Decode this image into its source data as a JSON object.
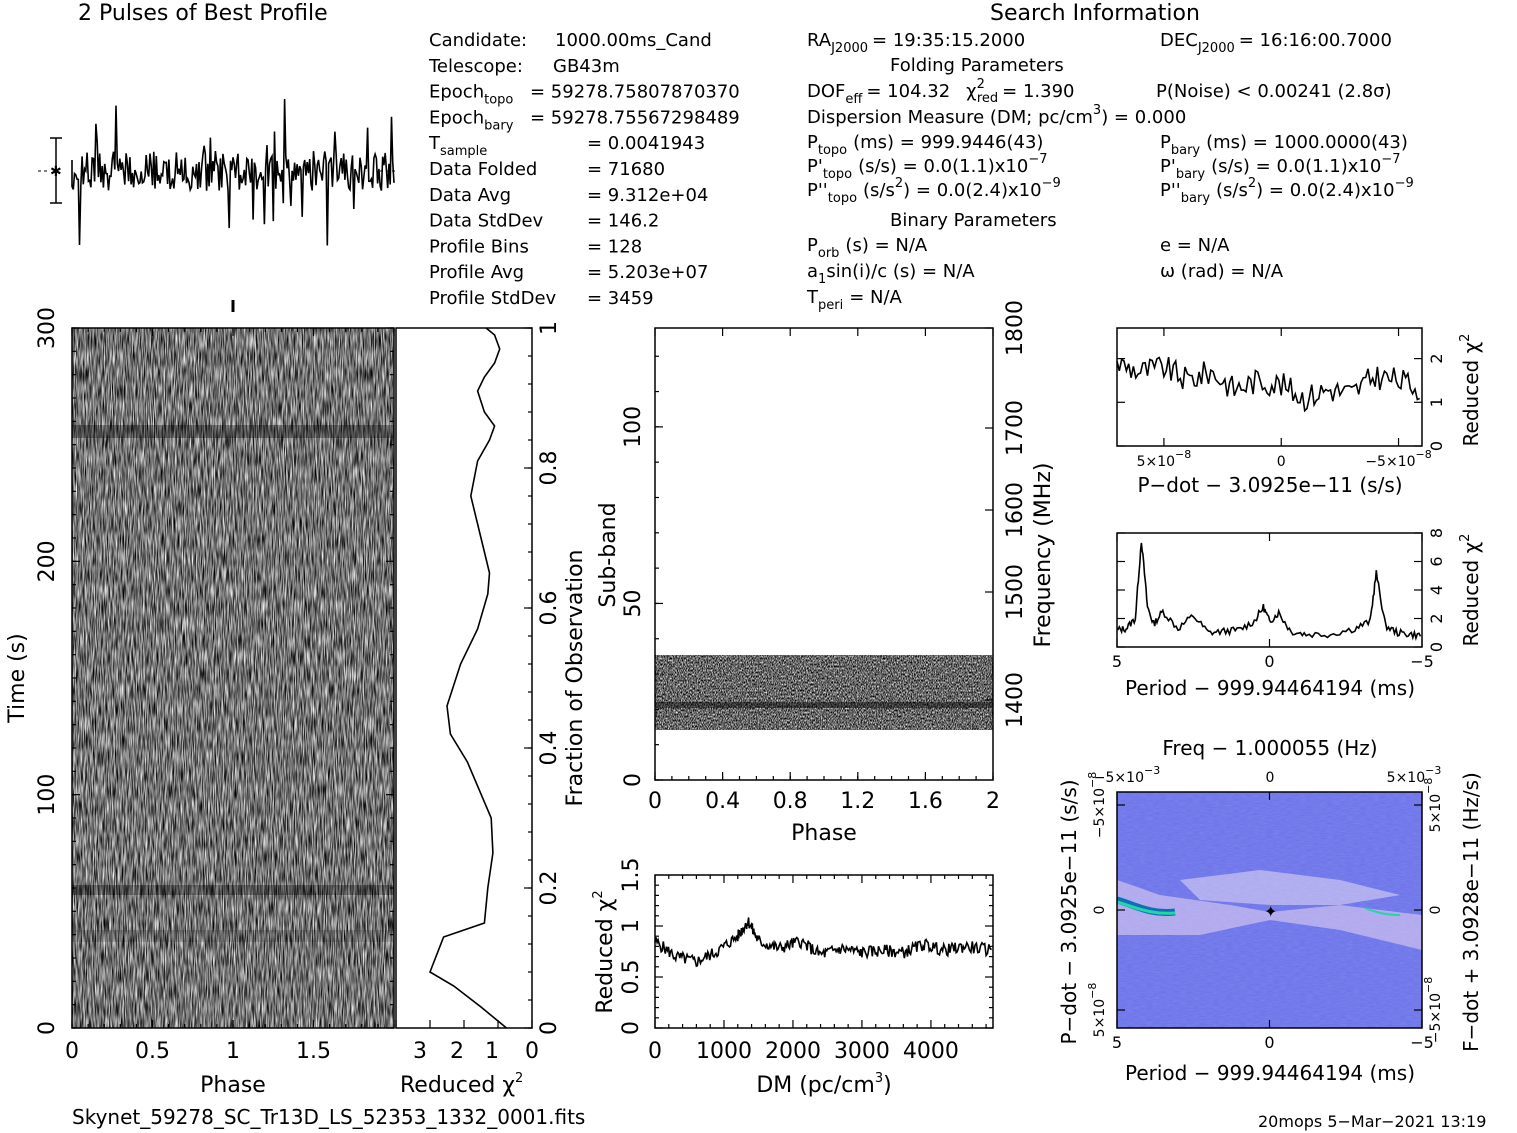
{
  "header": {
    "profile_title": "2 Pulses of Best Profile",
    "search_title": "Search Information",
    "folding_title": "Folding Parameters",
    "binary_title": "Binary Parameters"
  },
  "info_left": [
    {
      "label": "Candidate:",
      "value": "1000.00ms_Cand"
    },
    {
      "label": "Telescope:",
      "value": "GB43m"
    },
    {
      "label": "Epoch",
      "sub": "topo",
      "value": "= 59278.75807870370"
    },
    {
      "label": "Epoch",
      "sub": "bary",
      "value": "= 59278.75567298489"
    },
    {
      "label": "T",
      "sub": "sample",
      "value": "=   0.0041943"
    },
    {
      "label": "Data Folded",
      "value": "=   71680"
    },
    {
      "label": "Data Avg",
      "value": "=   9.312e+04"
    },
    {
      "label": "Data StdDev",
      "value": "=   146.2"
    },
    {
      "label": "Profile Bins",
      "value": "=   128"
    },
    {
      "label": "Profile Avg",
      "value": "=   5.203e+07"
    },
    {
      "label": "Profile StdDev",
      "value": "=   3459"
    }
  ],
  "search": {
    "ra_label": "RA",
    "ra_sub": "J2000",
    "ra_value": "= 19:35:15.2000",
    "dec_label": "DEC",
    "dec_sub": "J2000",
    "dec_value": "= 16:16:00.7000",
    "dof_label": "DOF",
    "dof_sub": "eff",
    "dof_value": "= 104.32",
    "chi_label": "χ",
    "chi_sup": "2",
    "chi_sub": "red",
    "chi_value": "= 1.390",
    "pnoise": "P(Noise) < 0.00241   (2.8σ)",
    "dm_line": "Dispersion Measure (DM; pc/cm",
    "dm_sup": "3",
    "dm_value": ") = 0.000",
    "ptopo": "P",
    "ptopo_sub": "topo",
    "ptopo_value": "(ms) =  999.9446(43)",
    "pbary": "P",
    "pbary_sub": "bary",
    "pbary_value": "(ms) =  1000.0000(43)",
    "pdtopo": "P'",
    "pdtopo_sub": "topo",
    "pdtopo_value": "(s/s) = 0.0(1.1)x10",
    "pdtopo_exp": "−7",
    "pdbary": "P'",
    "pdbary_sub": "bary",
    "pdbary_value": "(s/s) = 0.0(1.1)x10",
    "pdbary_exp": "−7",
    "pddtopo": "P''",
    "pddtopo_sub": "topo",
    "pddtopo_value": "(s/s",
    "pddtopo_unit_sup": "2",
    "pddtopo_value2": ") = 0.0(2.4)x10",
    "pddtopo_exp": "−9",
    "pddbary": "P''",
    "pddbary_sub": "bary",
    "pddbary_value": "(s/s",
    "pddbary_unit_sup": "2",
    "pddbary_value2": ") = 0.0(2.4)x10",
    "pddbary_exp": "−9",
    "porb": "P",
    "porb_sub": "orb",
    "porb_value": "(s) = N/A",
    "e_value": "e = N/A",
    "a1": "a",
    "a1_sub": "1",
    "a1_value": "sin(i)/c (s) = N/A",
    "omega_value": "ω (rad) = N/A",
    "tperi": "T",
    "tperi_sub": "peri",
    "tperi_value": "= N/A"
  },
  "footer": {
    "filename": "Skynet_59278_SC_Tr13D_LS_52353_1332_0001.fits",
    "stamp": "20mops   5−Mar−2021 13:19"
  },
  "chart_data": [
    {
      "id": "profile",
      "type": "line",
      "title": "2 Pulses of Best Profile",
      "note": "noise-like two-pulse profile, no axes"
    },
    {
      "id": "time_phase",
      "type": "heatmap",
      "xlabel": "Phase",
      "ylabel": "Time (s)",
      "xlim": [
        0,
        2
      ],
      "ylim": [
        0,
        300
      ],
      "x_ticks": [
        "0",
        "0.5",
        "1",
        "1.5"
      ],
      "y_ticks": [
        "0",
        "100",
        "200",
        "300"
      ]
    },
    {
      "id": "time_chi2",
      "type": "line",
      "xlabel": "Reduced χ",
      "xlabel_sup": "2",
      "ylabel_right": "Fraction of Observation",
      "x_ticks": [
        "3",
        "2",
        "1",
        "0"
      ],
      "y_ticks_right": [
        "0",
        "0.2",
        "0.4",
        "0.6",
        "0.8",
        "1"
      ],
      "xlim": [
        4,
        0
      ],
      "ylim": [
        0,
        1
      ],
      "x": [
        0.75,
        1.5,
        2.3,
        3.0,
        2.6,
        1.4,
        1.3,
        1.15,
        1.2,
        1.9,
        2.4,
        2.5,
        2.1,
        1.6,
        1.3,
        1.25,
        1.5,
        1.8,
        1.6,
        1.25,
        1.1,
        1.4,
        1.6,
        1.4,
        1.1,
        0.95,
        1.1,
        1.35
      ],
      "y": [
        0.0,
        0.03,
        0.06,
        0.08,
        0.13,
        0.15,
        0.2,
        0.25,
        0.3,
        0.38,
        0.42,
        0.46,
        0.52,
        0.57,
        0.62,
        0.65,
        0.7,
        0.76,
        0.81,
        0.84,
        0.86,
        0.88,
        0.91,
        0.93,
        0.95,
        0.97,
        0.99,
        1.0
      ]
    },
    {
      "id": "subband_phase",
      "type": "heatmap",
      "xlabel": "Phase",
      "ylabel": "Sub-band",
      "ylabel_right": "Frequency (MHz)",
      "xlim": [
        0,
        2
      ],
      "ylim": [
        0,
        128
      ],
      "x_ticks": [
        "0",
        "0.4",
        "0.8",
        "1.2",
        "1.6",
        "2"
      ],
      "y_ticks": [
        "0",
        "50",
        "100"
      ],
      "y_ticks_right": [
        "1400",
        "1500",
        "1600",
        "1700",
        "1800"
      ],
      "band_min": 14,
      "band_max": 35
    },
    {
      "id": "dm_chi2",
      "type": "line",
      "xlabel": "DM (pc/cm",
      "xlabel_sup": "3",
      "xlabel_end": ")",
      "ylabel": "Reduced χ",
      "ylabel_sup": "2",
      "xlim": [
        0,
        4900
      ],
      "ylim": [
        0,
        1.5
      ],
      "x_ticks": [
        "0",
        "1000",
        "2000",
        "3000",
        "4000"
      ],
      "y_ticks": [
        "0",
        "0.5",
        "1",
        "1.5"
      ],
      "x": [
        0,
        300,
        600,
        900,
        1200,
        1350,
        1500,
        1800,
        2100,
        2400,
        2700,
        3000,
        3300,
        3600,
        3900,
        4200,
        4500,
        4900
      ],
      "y": [
        0.85,
        0.7,
        0.65,
        0.75,
        0.9,
        1.05,
        0.85,
        0.78,
        0.85,
        0.72,
        0.78,
        0.74,
        0.76,
        0.74,
        0.82,
        0.76,
        0.8,
        0.76
      ]
    },
    {
      "id": "pdot_chi2",
      "type": "line",
      "xlabel": "P−dot − 3.0925e−11 (s/s)",
      "ylabel_right": "Reduced χ",
      "ylabel_right_sup": "2",
      "xlim": [
        7e-08,
        -6e-08
      ],
      "ylim": [
        0,
        2.7
      ],
      "x_ticks": [
        "5×10",
        "0",
        "−5×10"
      ],
      "x_tick_exp": "−8",
      "y_ticks_right": [
        "0",
        "1",
        "2"
      ],
      "x": [
        7e-08,
        6e-08,
        5e-08,
        4e-08,
        3e-08,
        2e-08,
        1e-08,
        0,
        -1e-08,
        -2e-08,
        -3e-08,
        -4e-08,
        -5e-08,
        -6e-08
      ],
      "y": [
        1.9,
        1.7,
        1.8,
        1.5,
        1.7,
        1.3,
        1.5,
        1.4,
        1.1,
        1.3,
        1.2,
        1.6,
        1.5,
        1.3
      ]
    },
    {
      "id": "period_chi2",
      "type": "line",
      "xlabel": "Period − 999.94464194 (ms)",
      "ylabel_right": "Reduced χ",
      "ylabel_right_sup": "2",
      "xlim": [
        5,
        -5
      ],
      "ylim": [
        0,
        8
      ],
      "x_ticks": [
        "5",
        "0",
        "−5"
      ],
      "y_ticks_right": [
        "0",
        "2",
        "4",
        "6",
        "8"
      ],
      "x": [
        5,
        4.7,
        4.4,
        4.2,
        4.0,
        3.8,
        3.5,
        3.0,
        2.5,
        2.0,
        1.5,
        1.0,
        0.5,
        0.2,
        0,
        -0.3,
        -0.7,
        -1.2,
        -2.0,
        -2.8,
        -3.3,
        -3.5,
        -3.8,
        -4.2,
        -4.6,
        -5
      ],
      "y": [
        1.2,
        1.3,
        2.0,
        7.5,
        2.8,
        1.6,
        2.5,
        1.3,
        2.2,
        1.0,
        1.1,
        1.2,
        1.8,
        2.8,
        1.8,
        2.4,
        1.1,
        0.9,
        0.9,
        1.3,
        1.8,
        5.2,
        1.5,
        1.0,
        0.9,
        0.8
      ]
    },
    {
      "id": "period_pdot_map",
      "type": "heatmap",
      "title": "Freq − 1.000055 (Hz)",
      "xlabel": "Period − 999.94464194 (ms)",
      "ylabel": "P−dot − 3.0925e−11 (s/s)",
      "ylabel_right": "F−dot + 3.0928e−11 (Hz/s)",
      "x_ticks": [
        "5",
        "0",
        "−5"
      ],
      "x_ticks_top": [
        "−5×10",
        "0",
        "5×10"
      ],
      "x_ticks_top_exp": "−3",
      "y_ticks": [
        "5×10",
        "0",
        "−5×10"
      ],
      "y_tick_exp": "−8",
      "y_ticks_right": [
        "−5×10",
        "0",
        "5×10"
      ],
      "y_tick_right_exp": "−8",
      "xlim": [
        5,
        -5
      ],
      "ylim": [
        7e-08,
        -6e-08
      ]
    }
  ]
}
